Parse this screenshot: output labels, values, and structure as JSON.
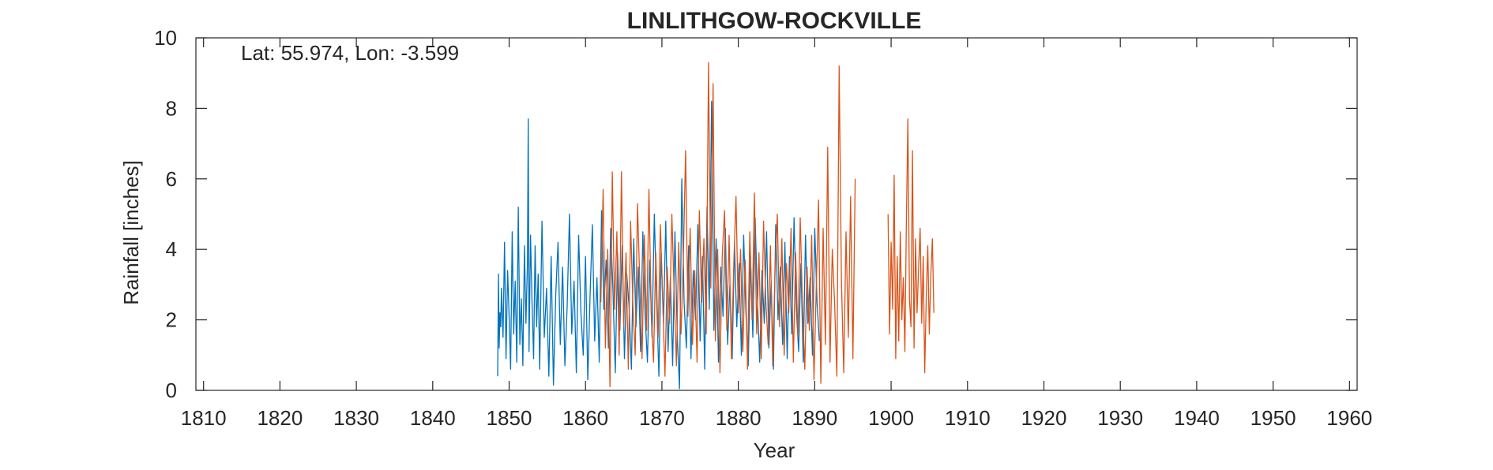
{
  "chart_data": {
    "type": "line",
    "title": "LINLITHGOW-ROCKVILLE",
    "xlabel": "Year",
    "ylabel": "Rainfall [inches]",
    "annotation": "Lat: 55.974, Lon: -3.599",
    "xlim": [
      1809,
      1961
    ],
    "ylim": [
      0,
      10
    ],
    "xticks": [
      1810,
      1820,
      1830,
      1840,
      1850,
      1860,
      1870,
      1880,
      1890,
      1900,
      1910,
      1920,
      1930,
      1940,
      1950,
      1960
    ],
    "yticks": [
      0,
      2,
      4,
      6,
      8,
      10
    ],
    "grid": false,
    "legend": "none",
    "series": [
      {
        "color": "#0072BD",
        "x": [
          1848.5,
          1848.6,
          1848.7,
          1848.8,
          1848.9,
          1849.0,
          1849.2,
          1849.4,
          1849.6,
          1849.8,
          1850.0,
          1850.2,
          1850.4,
          1850.6,
          1850.8,
          1851.0,
          1851.2,
          1851.4,
          1851.6,
          1851.8,
          1852.0,
          1852.2,
          1852.4,
          1852.5,
          1852.6,
          1852.8,
          1853.0,
          1853.2,
          1853.4,
          1853.6,
          1853.8,
          1854.0,
          1854.3,
          1854.6,
          1854.9,
          1855.2,
          1855.5,
          1855.8,
          1856.1,
          1856.4,
          1856.7,
          1857.0,
          1857.3,
          1857.6,
          1857.9,
          1858.2,
          1858.5,
          1858.8,
          1859.1,
          1859.4,
          1859.7,
          1860.0,
          1860.3,
          1860.6,
          1860.9,
          1861.2,
          1861.5,
          1861.8,
          1862.1,
          1862.4,
          1862.7,
          1863.0,
          1863.3,
          1863.6,
          1863.9,
          1864.2,
          1864.5,
          1864.8,
          1865.1,
          1865.4,
          1865.7,
          1866.0,
          1866.3,
          1866.6,
          1866.9,
          1867.2,
          1867.5,
          1867.8,
          1868.1,
          1868.4,
          1868.7,
          1869.0,
          1869.3,
          1869.6,
          1869.9,
          1870.2,
          1870.5,
          1870.8,
          1871.1,
          1871.4,
          1871.7,
          1872.0,
          1872.3,
          1872.6,
          1872.9,
          1873.2,
          1873.5,
          1873.8,
          1874.1,
          1874.4,
          1874.7,
          1875.0,
          1875.3,
          1875.6,
          1875.9,
          1876.2,
          1876.5,
          1876.8,
          1877.1,
          1877.4,
          1877.7,
          1878.0,
          1878.3,
          1878.6,
          1878.9,
          1879.2,
          1879.5,
          1879.8,
          1880.1,
          1880.4,
          1880.7,
          1881.0,
          1881.3,
          1881.6,
          1881.9,
          1882.2,
          1882.5,
          1882.8,
          1883.1,
          1883.4,
          1883.7,
          1884.0,
          1884.3,
          1884.6,
          1884.9,
          1885.2,
          1885.5,
          1885.8,
          1886.1,
          1886.4,
          1886.7,
          1887.0,
          1887.3,
          1887.6,
          1887.9,
          1888.2,
          1888.5,
          1888.8,
          1889.1,
          1889.4,
          1889.7,
          1890.0,
          1890.3,
          1890.6
        ],
        "y": [
          0.4,
          3.3,
          1.2,
          2.2,
          1.8,
          2.9,
          1.5,
          4.2,
          0.9,
          3.4,
          2.1,
          0.6,
          4.5,
          1.6,
          3.1,
          0.8,
          5.2,
          1.3,
          2.6,
          0.7,
          4.1,
          1.9,
          3.6,
          7.7,
          1.1,
          4.4,
          2.5,
          0.9,
          4.1,
          1.8,
          3.3,
          0.6,
          4.8,
          1.5,
          2.9,
          0.4,
          3.8,
          0.15,
          2.7,
          4.2,
          1.3,
          3.5,
          0.7,
          2.4,
          5.0,
          1.6,
          3.1,
          0.5,
          4.4,
          2.2,
          1.0,
          3.8,
          0.3,
          2.7,
          4.7,
          1.4,
          3.2,
          0.8,
          5.1,
          2.3,
          3.7,
          1.2,
          4.6,
          2.8,
          0.5,
          3.9,
          1.7,
          4.1,
          0.9,
          3.3,
          2.4,
          0.6,
          4.3,
          1.8,
          3.5,
          1.1,
          4.5,
          2.1,
          0.8,
          3.7,
          1.5,
          5.0,
          2.6,
          0.4,
          3.9,
          1.9,
          4.8,
          1.1,
          3.2,
          0.7,
          4.5,
          1.6,
          0.05,
          6.0,
          2.5,
          1.2,
          4.1,
          0.9,
          3.4,
          2.0,
          4.7,
          1.4,
          3.8,
          0.6,
          5.2,
          2.3,
          8.2,
          1.7,
          4.3,
          0.8,
          3.5,
          2.1,
          4.6,
          1.3,
          3.0,
          0.9,
          4.2,
          1.8,
          3.6,
          1.0,
          4.4,
          2.2,
          0.7,
          3.8,
          1.5,
          4.9,
          2.6,
          0.8,
          3.4,
          1.9,
          4.5,
          1.2,
          3.1,
          0.6,
          4.7,
          2.0,
          3.5,
          1.3,
          4.2,
          0.9,
          3.8,
          1.6,
          4.9,
          2.3,
          1.1,
          3.6,
          0.8,
          4.4,
          1.9,
          3.2,
          1.0,
          4.6,
          2.5,
          1.4
        ]
      },
      {
        "color": "#D95319",
        "x": [
          1862.0,
          1862.3,
          1862.6,
          1862.9,
          1863.2,
          1863.5,
          1863.8,
          1864.1,
          1864.4,
          1864.7,
          1865.0,
          1865.3,
          1865.6,
          1865.9,
          1866.2,
          1866.5,
          1866.8,
          1867.1,
          1867.4,
          1867.7,
          1868.0,
          1868.3,
          1868.6,
          1868.9,
          1869.2,
          1869.5,
          1869.8,
          1870.1,
          1870.4,
          1870.7,
          1871.0,
          1871.3,
          1871.6,
          1871.9,
          1872.2,
          1872.5,
          1872.8,
          1873.1,
          1873.4,
          1873.7,
          1874.0,
          1874.3,
          1874.6,
          1874.9,
          1875.2,
          1875.5,
          1875.8,
          1876.1,
          1876.4,
          1876.7,
          1877.0,
          1877.3,
          1877.6,
          1877.9,
          1878.2,
          1878.5,
          1878.8,
          1879.1,
          1879.4,
          1879.7,
          1880.0,
          1880.3,
          1880.6,
          1880.9,
          1881.2,
          1881.5,
          1881.8,
          1882.1,
          1882.4,
          1882.7,
          1883.0,
          1883.3,
          1883.6,
          1883.9,
          1884.2,
          1884.5,
          1884.8,
          1885.1,
          1885.4,
          1885.7,
          1886.0,
          1886.3,
          1886.6,
          1886.9,
          1887.2,
          1887.5,
          1887.8,
          1888.1,
          1888.4,
          1888.7,
          1889.0,
          1889.3,
          1889.6,
          1889.9,
          1890.2,
          1890.5,
          1890.8,
          1891.1,
          1891.4,
          1891.7,
          1892.0,
          1892.3,
          1892.6,
          1892.9,
          1893.2,
          1893.5,
          1893.8,
          1894.1,
          1894.4,
          1894.7,
          1895.0,
          1895.3
        ],
        "y": [
          2.5,
          5.7,
          1.2,
          4.0,
          0.1,
          6.2,
          2.3,
          4.5,
          1.0,
          6.2,
          1.8,
          3.9,
          0.6,
          4.8,
          2.4,
          1.0,
          5.3,
          3.1,
          0.9,
          4.4,
          1.7,
          5.7,
          2.2,
          0.8,
          3.9,
          1.5,
          4.7,
          2.6,
          0.4,
          3.5,
          1.9,
          5.0,
          2.8,
          0.7,
          4.2,
          1.6,
          3.7,
          6.8,
          2.1,
          4.6,
          1.3,
          3.4,
          0.8,
          5.1,
          2.5,
          4.3,
          1.6,
          9.3,
          2.9,
          8.7,
          1.4,
          4.0,
          0.5,
          3.8,
          5.1,
          1.7,
          4.4,
          0.9,
          3.5,
          5.5,
          2.2,
          4.0,
          1.1,
          3.7,
          0.6,
          4.5,
          2.0,
          5.6,
          1.6,
          3.9,
          0.9,
          4.8,
          2.5,
          1.3,
          4.1,
          0.7,
          3.4,
          5.0,
          1.8,
          4.3,
          1.0,
          3.6,
          2.2,
          4.6,
          0.8,
          3.9,
          1.5,
          4.9,
          2.4,
          0.6,
          3.5,
          1.7,
          4.4,
          0.3,
          2.9,
          5.4,
          0.2,
          4.6,
          1.3,
          6.9,
          0.8,
          4.0,
          2.5,
          0.4,
          9.2,
          3.1,
          0.5,
          4.5,
          1.5,
          5.5,
          0.9,
          6.0
        ],
        "segments": [
          {
            "x": [
              1899.6,
              1899.8,
              1900.0,
              1900.2,
              1900.4,
              1900.6,
              1900.8,
              1901.0,
              1901.2,
              1901.4,
              1901.6,
              1901.8,
              1902.0,
              1902.2,
              1902.4,
              1902.6,
              1902.8,
              1903.0,
              1903.2,
              1903.4,
              1903.6,
              1903.8,
              1904.0,
              1904.2,
              1904.4,
              1904.6,
              1904.8,
              1905.0,
              1905.2,
              1905.4,
              1905.6
            ],
            "y": [
              5.0,
              1.6,
              4.2,
              2.3,
              6.1,
              0.9,
              3.8,
              1.4,
              4.5,
              2.0,
              3.2,
              1.1,
              4.8,
              7.7,
              2.6,
              1.8,
              6.8,
              1.2,
              4.3,
              2.2,
              3.5,
              4.6,
              1.9,
              3.8,
              0.5,
              2.7,
              4.1,
              1.6,
              3.3,
              4.3,
              2.2
            ]
          }
        ]
      }
    ]
  }
}
